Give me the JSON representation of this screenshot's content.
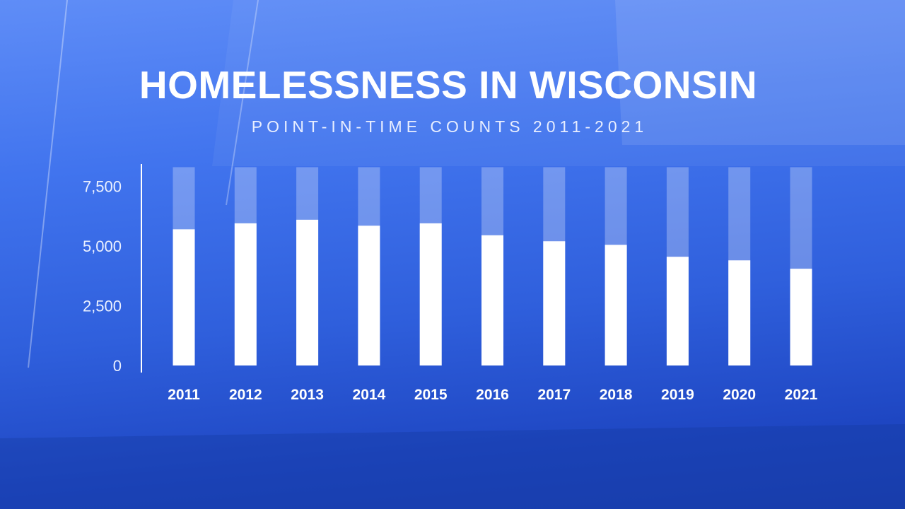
{
  "title": "HOMELESSNESS IN WISCONSIN",
  "subtitle": "POINT-IN-TIME COUNTS 2011-2021",
  "colors": {
    "bar": "#ffffff",
    "bar_track": "rgba(255,255,255,0.28)",
    "axis": "#ffffff"
  },
  "chart_data": {
    "type": "bar",
    "title": "HOMELESSNESS IN WISCONSIN",
    "subtitle": "POINT-IN-TIME COUNTS 2011-2021",
    "categories": [
      "2011",
      "2012",
      "2013",
      "2014",
      "2015",
      "2016",
      "2017",
      "2018",
      "2019",
      "2020",
      "2021"
    ],
    "values": [
      5700,
      5950,
      6100,
      5850,
      5950,
      5450,
      5200,
      5050,
      4550,
      4400,
      4050
    ],
    "track_max": 8300,
    "yticks": [
      0,
      2500,
      5000,
      7500
    ],
    "ytick_labels": [
      "0",
      "2,500",
      "5,000",
      "7,500"
    ],
    "ylim": [
      0,
      8300
    ],
    "xlabel": "",
    "ylabel": "",
    "grid": false,
    "legend": "none"
  }
}
